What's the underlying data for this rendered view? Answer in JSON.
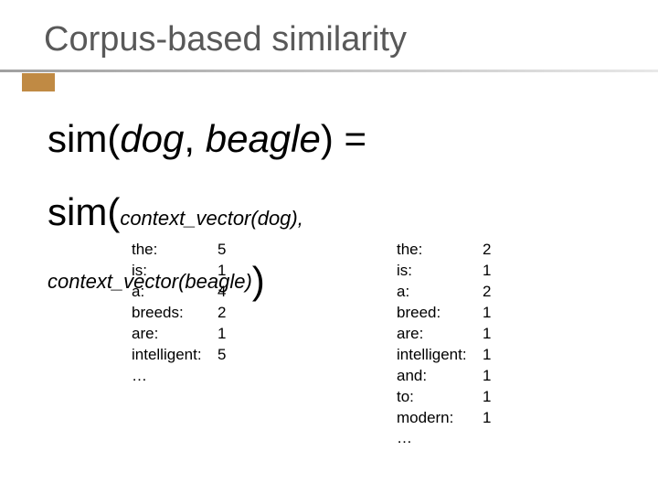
{
  "title": "Corpus-based similarity",
  "title_color": "#595959",
  "title_fontsize": 38,
  "accent_color": "#c08a44",
  "background_color": "#ffffff",
  "line1": {
    "func": "sim(",
    "arg1": "dog",
    "comma": ", ",
    "arg2": "beagle",
    "close": ") ="
  },
  "line2": {
    "func": "sim(",
    "sub": "context_vector(dog)",
    "comma": ","
  },
  "line3": {
    "text": "context_vector(beagle)",
    "paren": ")"
  },
  "formula_fontsize_large": 42,
  "formula_fontsize_small": 22,
  "vector_fontsize": 17,
  "vector_left": {
    "rows": [
      {
        "key": "the:",
        "val": "5"
      },
      {
        "key": "is:",
        "val": "1"
      },
      {
        "key": "a:",
        "val": "4"
      },
      {
        "key": "breeds:",
        "val": "2"
      },
      {
        "key": "are:",
        "val": "1"
      },
      {
        "key": "intelligent:",
        "val": "5"
      },
      {
        "key": "…",
        "val": ""
      }
    ]
  },
  "vector_right": {
    "rows": [
      {
        "key": "the:",
        "val": "2"
      },
      {
        "key": "is:",
        "val": "1"
      },
      {
        "key": "a:",
        "val": "2"
      },
      {
        "key": "breed:",
        "val": "1"
      },
      {
        "key": "are:",
        "val": "1"
      },
      {
        "key": "intelligent:",
        "val": "1"
      },
      {
        "key": "and:",
        "val": "1"
      },
      {
        "key": "to:",
        "val": "1"
      },
      {
        "key": "modern:",
        "val": "1"
      },
      {
        "key": "…",
        "val": ""
      }
    ]
  }
}
